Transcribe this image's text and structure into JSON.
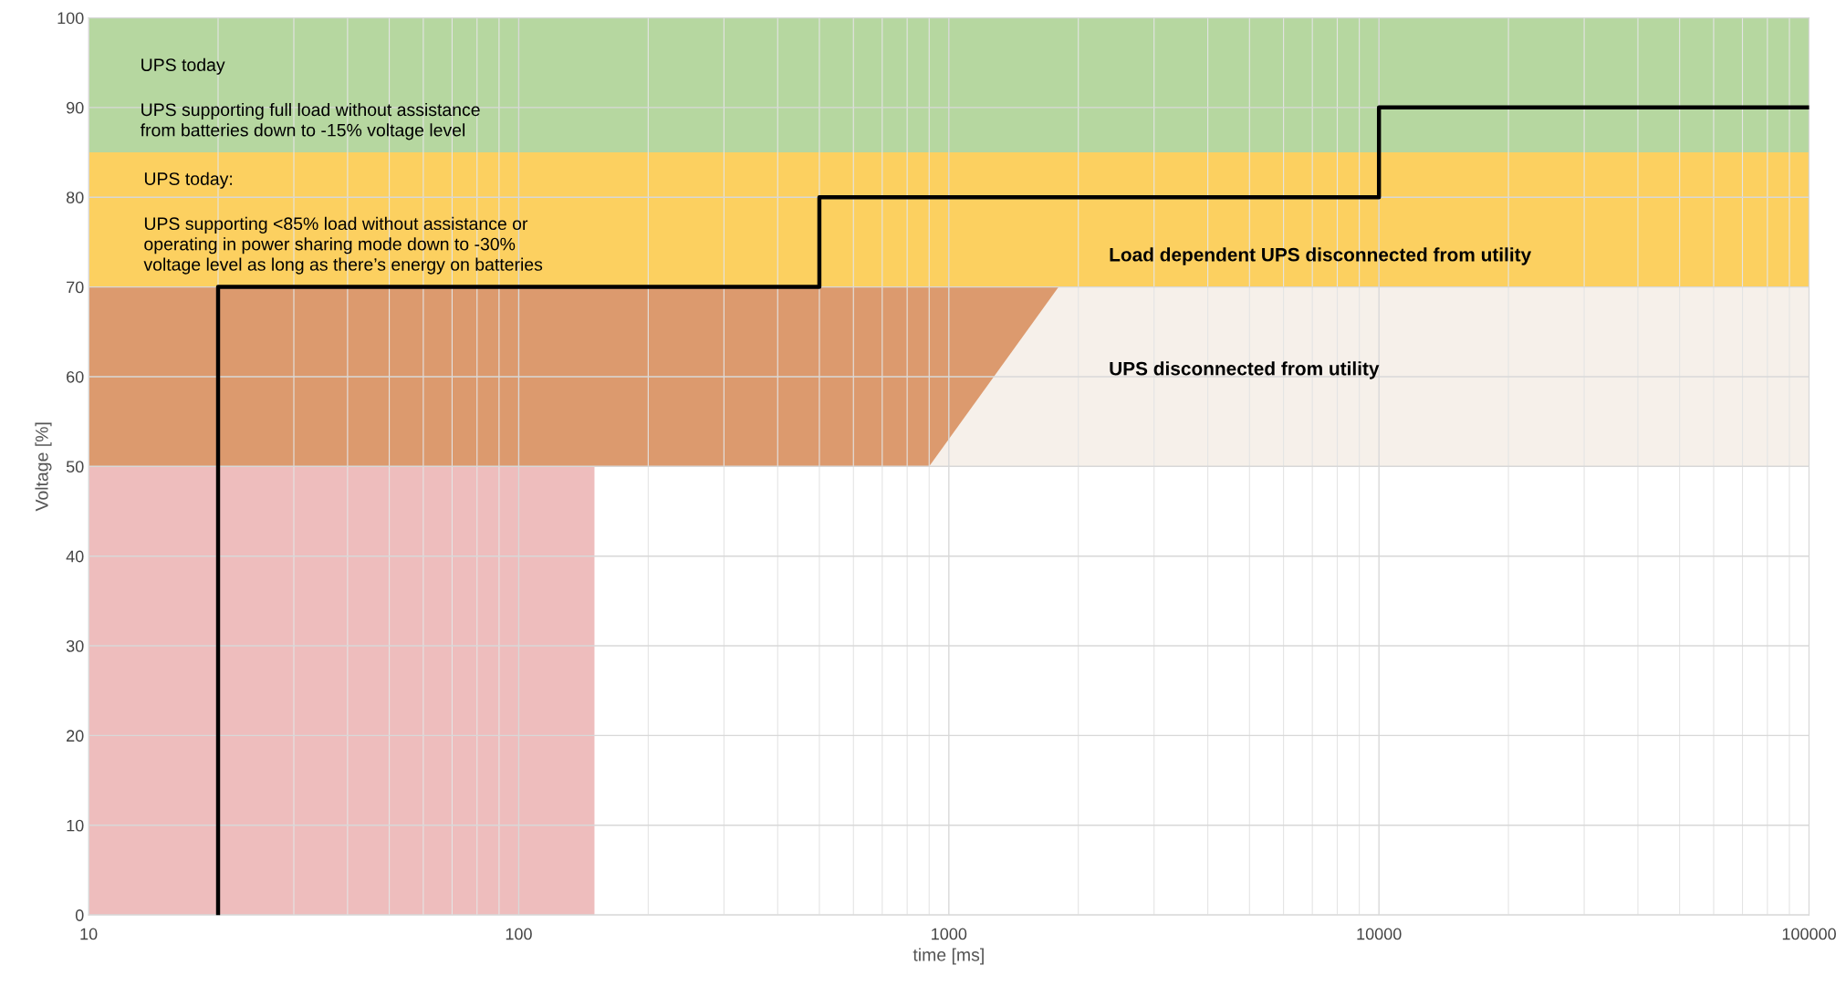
{
  "chart_data": {
    "type": "line",
    "xlabel": "time [ms]",
    "ylabel": "Voltage [%]",
    "log": "x",
    "xlim": [
      10,
      100000
    ],
    "xticks": [
      10,
      100,
      1000,
      10000,
      100000
    ],
    "ylim": [
      0,
      100
    ],
    "yticks": [
      0,
      10,
      20,
      30,
      40,
      50,
      60,
      70,
      80,
      90,
      100
    ],
    "grid": true,
    "legend": false,
    "bands": [
      {
        "axis": "y",
        "from": 85,
        "to": 100,
        "color": "#b6d7a0"
      },
      {
        "axis": "y",
        "from": 70,
        "to": 85,
        "color": "#fcd060"
      },
      {
        "axis": "y",
        "from": 50,
        "to": 70,
        "color": "#dc9a6e"
      }
    ],
    "series": [
      {
        "type": "area",
        "color": "#f6f0ea",
        "x": [
          900,
          1800,
          100000
        ],
        "values": [
          50,
          70,
          70
        ]
      },
      {
        "type": "area",
        "color": "#ffffff",
        "x": [
          150,
          100000
        ],
        "values": [
          50,
          50
        ]
      },
      {
        "type": "area",
        "color": "#eebdbd",
        "x": [
          10,
          150
        ],
        "values": [
          50,
          50
        ]
      },
      {
        "color": "#000000",
        "x": [
          20,
          20,
          500,
          500,
          10000,
          10000,
          100000
        ],
        "values": [
          0,
          70,
          70,
          80,
          80,
          90,
          90
        ]
      }
    ],
    "annotations": [
      "UPS today",
      "UPS supporting full load without assistance\nfrom batteries down to -15% voltage level",
      "UPS today:",
      "UPS supporting <85% load without assistance or\noperating in power sharing mode down to -30%\nvoltage level as long as there’s energy on batteries",
      "Load dependent UPS disconnected from utility",
      "UPS disconnected from utility"
    ]
  }
}
